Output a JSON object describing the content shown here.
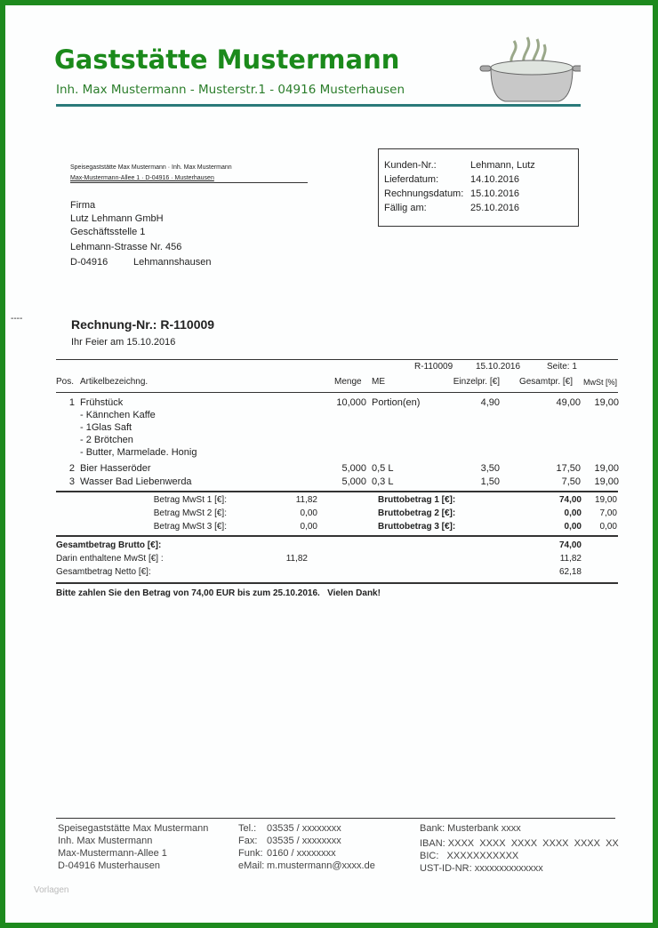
{
  "header": {
    "title": "Gaststätte Mustermann",
    "subtitle": "Inh. Max Mustermann - Musterstr.1 - 04916 Musterhausen",
    "logo": "cooking-pot-icon"
  },
  "sender_line": [
    "Speisegaststätte Max Mustermann · Inh. Max Mustermann",
    "Max-Mustermann-Allee 1 · D-04916 · Musterhausen"
  ],
  "recipient": {
    "line1": "Firma",
    "line2": "Lutz Lehmann GmbH",
    "line3": "Geschäftsstelle 1",
    "line4": "Lehmann-Strasse Nr. 456",
    "zip": "D-04916",
    "city": "Lehmannshausen"
  },
  "info_box": [
    {
      "label": "Kunden-Nr.:",
      "value": "Lehmann, Lutz"
    },
    {
      "label": "Lieferdatum:",
      "value": "14.10.2016"
    },
    {
      "label": "Rechnungsdatum:",
      "value": "15.10.2016"
    },
    {
      "label": "Fällig am:",
      "value": "25.10.2016"
    }
  ],
  "fold_mark": "----",
  "invoice": {
    "title": "Rechnung-Nr.: R-110009",
    "subtitle": "Ihr Feier am 15.10.2016",
    "ref_no": "R-110009",
    "ref_date": "15.10.2016",
    "page": "Seite: 1"
  },
  "columns": {
    "pos": "Pos.",
    "article": "Artikelbezeichng.",
    "qty": "Menge",
    "unit": "ME",
    "unit_price": "Einzelpr. [€]",
    "total": "Gesamtpr. [€]",
    "vat": "MwSt [%]"
  },
  "items": [
    {
      "pos": "1",
      "name": "Frühstück",
      "qty": "10,000",
      "unit": "Portion(en)",
      "price": "4,90",
      "total": "49,00",
      "vat": "19,00",
      "details": [
        "- Kännchen Kaffe",
        "- 1Glas Saft",
        "- 2 Brötchen",
        "- Butter, Marmelade. Honig"
      ]
    },
    {
      "pos": "2",
      "name": "Bier Hasseröder",
      "qty": "5,000",
      "unit": "0,5 L",
      "price": "3,50",
      "total": "17,50",
      "vat": "19,00"
    },
    {
      "pos": "3",
      "name": "Wasser Bad Liebenwerda",
      "qty": "5,000",
      "unit": "0,3 L",
      "price": "1,50",
      "total": "7,50",
      "vat": "19,00"
    }
  ],
  "tax_rows": [
    {
      "label": "Betrag MwSt 1 [€]:",
      "value": "11,82",
      "brutto_label": "Bruttobetrag 1 [€]:",
      "brutto": "74,00",
      "rate": "19,00"
    },
    {
      "label": "Betrag MwSt 2 [€]:",
      "value": "0,00",
      "brutto_label": "Bruttobetrag 2 [€]:",
      "brutto": "0,00",
      "rate": "7,00"
    },
    {
      "label": "Betrag MwSt 3 [€]:",
      "value": "0,00",
      "brutto_label": "Bruttobetrag 3 [€]:",
      "brutto": "0,00",
      "rate": "0,00"
    }
  ],
  "totals": {
    "gross_label": "Gesamtbetrag Brutto [€]:",
    "gross": "74,00",
    "vat_label": "Darin enthaltene MwSt [€] :",
    "vat_mid": "11,82",
    "vat": "11,82",
    "net_label": "Gesamtbetrag Netto [€]:",
    "net": "62,18"
  },
  "payment_note": "Bitte zahlen Sie den Betrag von 74,00 EUR bis zum 25.10.2016.   Vielen Dank!",
  "footer": {
    "col1": [
      "Speisegaststätte Max Mustermann",
      "Inh. Max Mustermann",
      "Max-Mustermann-Allee 1",
      "D-04916  Musterhausen"
    ],
    "col2": [
      {
        "label": "Tel.:",
        "value": "03535 / xxxxxxxx"
      },
      {
        "label": "Fax:",
        "value": "03535 / xxxxxxxx"
      },
      {
        "label": "Funk:",
        "value": "0160 / xxxxxxxx"
      },
      {
        "label": "eMail:",
        "value": "m.mustermann@xxxx.de"
      }
    ],
    "col3": [
      "Bank: Musterbank xxxx",
      "IBAN: XXXX  XXXX  XXXX  XXXX  XXXX  XX",
      "BIC:   XXXXXXXXXXX",
      "UST-ID-NR: xxxxxxxxxxxxxx"
    ]
  },
  "watermark": "Vorlagen",
  "colors": {
    "border": "#1e8a1e",
    "title": "#1b8a1b",
    "rule": "#2a7a7a"
  }
}
